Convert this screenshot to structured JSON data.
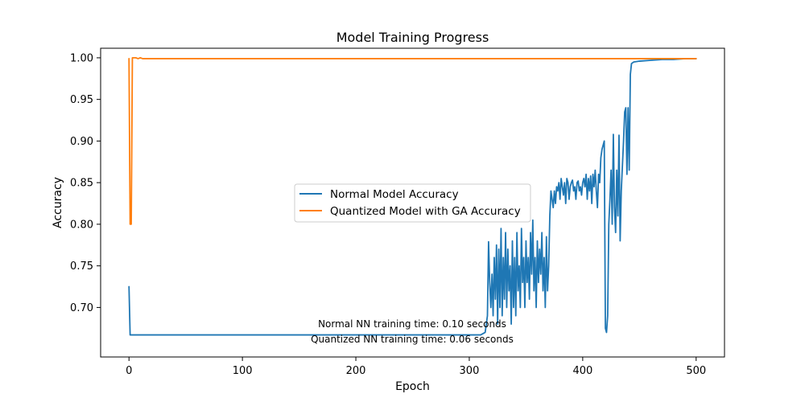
{
  "chart_data": {
    "type": "line",
    "title": "Model Training Progress",
    "xlabel": "Epoch",
    "ylabel": "Accuracy",
    "xlim": [
      -25,
      525
    ],
    "ylim": [
      0.6405,
      1.0115
    ],
    "xticks": [
      0,
      100,
      200,
      300,
      400,
      500
    ],
    "xtick_labels": [
      "0",
      "100",
      "200",
      "300",
      "400",
      "500"
    ],
    "yticks": [
      0.7,
      0.75,
      0.8,
      0.85,
      0.9,
      0.95,
      1.0
    ],
    "ytick_labels": [
      "0.70",
      "0.75",
      "0.80",
      "0.85",
      "0.90",
      "0.95",
      "1.00"
    ],
    "grid": false,
    "legend_position": "center",
    "annotations": [
      "Normal NN training time: 0.10 seconds",
      "Quantized NN training time: 0.06 seconds"
    ],
    "series": [
      {
        "name": "Normal Model Accuracy",
        "color": "#1f77b4",
        "x": [
          0,
          1,
          50,
          100,
          150,
          200,
          250,
          300,
          310,
          314,
          316,
          317,
          318,
          319,
          320,
          321,
          322,
          323,
          324,
          325,
          326,
          327,
          328,
          329,
          330,
          331,
          332,
          333,
          334,
          335,
          336,
          337,
          338,
          339,
          340,
          341,
          342,
          343,
          344,
          345,
          346,
          347,
          348,
          349,
          350,
          351,
          352,
          353,
          354,
          355,
          356,
          357,
          358,
          359,
          360,
          361,
          362,
          363,
          364,
          365,
          366,
          367,
          368,
          369,
          370,
          371,
          372,
          373,
          374,
          375,
          376,
          377,
          378,
          379,
          380,
          381,
          382,
          383,
          384,
          385,
          386,
          387,
          388,
          389,
          390,
          391,
          392,
          393,
          394,
          395,
          396,
          397,
          398,
          399,
          400,
          401,
          402,
          403,
          404,
          405,
          406,
          407,
          408,
          409,
          410,
          411,
          412,
          413,
          414,
          415,
          416,
          417,
          418,
          419,
          420,
          421,
          422,
          423,
          424,
          425,
          426,
          427,
          428,
          429,
          430,
          431,
          432,
          433,
          434,
          435,
          436,
          437,
          438,
          439,
          440,
          441,
          442,
          443,
          445,
          450,
          460,
          470,
          480,
          490,
          500
        ],
        "values": [
          0.725,
          0.667,
          0.667,
          0.667,
          0.667,
          0.667,
          0.667,
          0.667,
          0.667,
          0.67,
          0.69,
          0.779,
          0.73,
          0.7,
          0.74,
          0.69,
          0.76,
          0.71,
          0.775,
          0.68,
          0.77,
          0.7,
          0.795,
          0.69,
          0.76,
          0.71,
          0.79,
          0.7,
          0.77,
          0.72,
          0.75,
          0.68,
          0.78,
          0.7,
          0.76,
          0.69,
          0.79,
          0.72,
          0.75,
          0.7,
          0.795,
          0.73,
          0.76,
          0.7,
          0.78,
          0.73,
          0.76,
          0.71,
          0.79,
          0.74,
          0.805,
          0.72,
          0.76,
          0.7,
          0.78,
          0.73,
          0.77,
          0.74,
          0.79,
          0.72,
          0.76,
          0.7,
          0.785,
          0.72,
          0.75,
          0.81,
          0.84,
          0.83,
          0.82,
          0.84,
          0.825,
          0.845,
          0.84,
          0.85,
          0.83,
          0.855,
          0.845,
          0.835,
          0.85,
          0.825,
          0.855,
          0.85,
          0.83,
          0.845,
          0.85,
          0.853,
          0.84,
          0.845,
          0.83,
          0.85,
          0.852,
          0.84,
          0.845,
          0.835,
          0.85,
          0.855,
          0.845,
          0.86,
          0.83,
          0.855,
          0.84,
          0.858,
          0.825,
          0.86,
          0.845,
          0.865,
          0.84,
          0.82,
          0.86,
          0.85,
          0.88,
          0.89,
          0.895,
          0.9,
          0.675,
          0.67,
          0.69,
          0.8,
          0.83,
          0.865,
          0.8,
          0.908,
          0.82,
          0.79,
          0.865,
          0.81,
          0.907,
          0.78,
          0.84,
          0.87,
          0.9,
          0.935,
          0.94,
          0.86,
          0.94,
          0.865,
          0.98,
          0.993,
          0.995,
          0.996,
          0.997,
          0.998,
          0.998,
          0.999,
          0.999
        ]
      },
      {
        "name": "Quantized Model with GA Accuracy",
        "color": "#ff7f0e",
        "x": [
          0,
          1,
          2,
          3,
          4,
          6,
          8,
          10,
          12,
          50,
          100,
          200,
          300,
          400,
          500
        ],
        "values": [
          0.999,
          0.8,
          0.8,
          1.0,
          1.0,
          1.0,
          0.999,
          1.0,
          0.999,
          0.999,
          0.999,
          0.999,
          0.999,
          0.999,
          0.999
        ]
      }
    ]
  }
}
